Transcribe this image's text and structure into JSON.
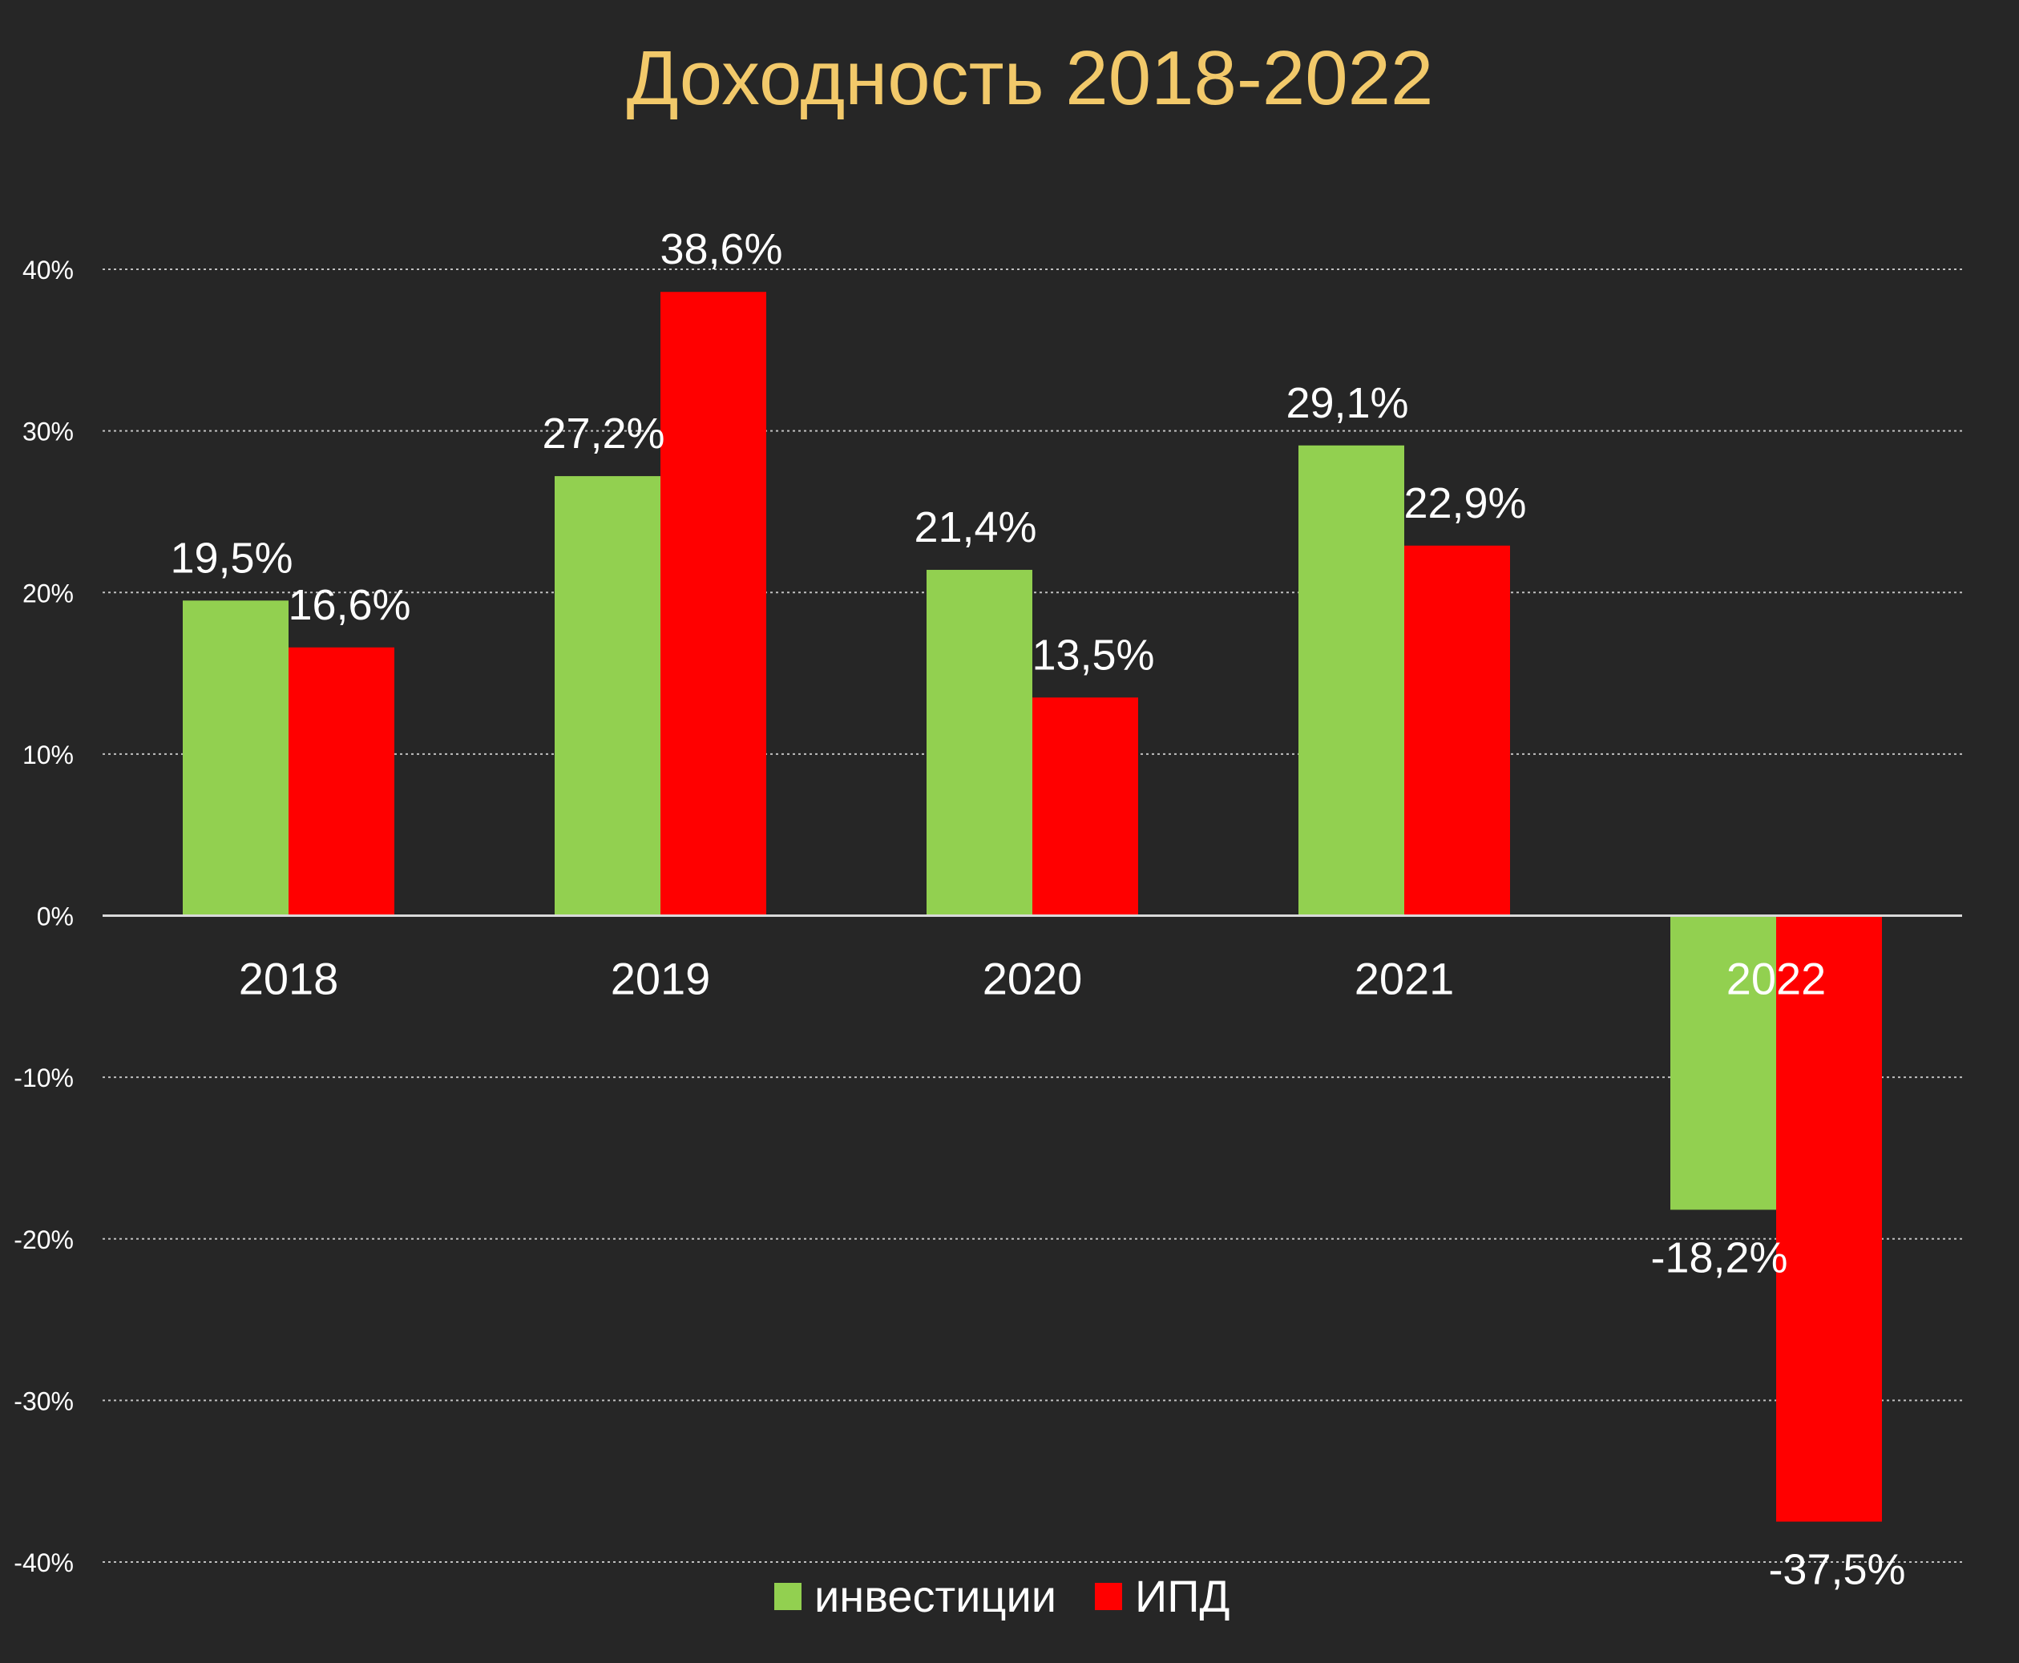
{
  "chart_data": {
    "type": "bar",
    "title": "Доходность 2018-2022",
    "title_color": "#F2C96A",
    "categories": [
      "2018",
      "2019",
      "2020",
      "2021",
      "2022"
    ],
    "series": [
      {
        "name": "инвестиции",
        "color": "#92D050",
        "values": [
          19.5,
          27.2,
          21.4,
          29.1,
          -18.2
        ],
        "labels": [
          "19,5%",
          "27,2%",
          "21,4%",
          "29,1%",
          "-18,2%"
        ]
      },
      {
        "name": "ИПД",
        "color": "#FF0000",
        "values": [
          16.6,
          38.6,
          13.5,
          22.9,
          -37.5
        ],
        "labels": [
          "16,6%",
          "38,6%",
          "13,5%",
          "22,9%",
          "-37,5%"
        ]
      }
    ],
    "ylim": [
      -40,
      40
    ],
    "yticks": [
      40,
      30,
      20,
      10,
      0,
      -10,
      -20,
      -30,
      -40
    ],
    "ytick_labels": [
      "40%",
      "30%",
      "20%",
      "10%",
      "0%",
      "-10%",
      "-20%",
      "-30%",
      "-40%"
    ],
    "grid": true,
    "grid_style": "dotted",
    "legend_position": "bottom-center",
    "background_color": "#262626",
    "text_color": "#FFFFFF"
  }
}
